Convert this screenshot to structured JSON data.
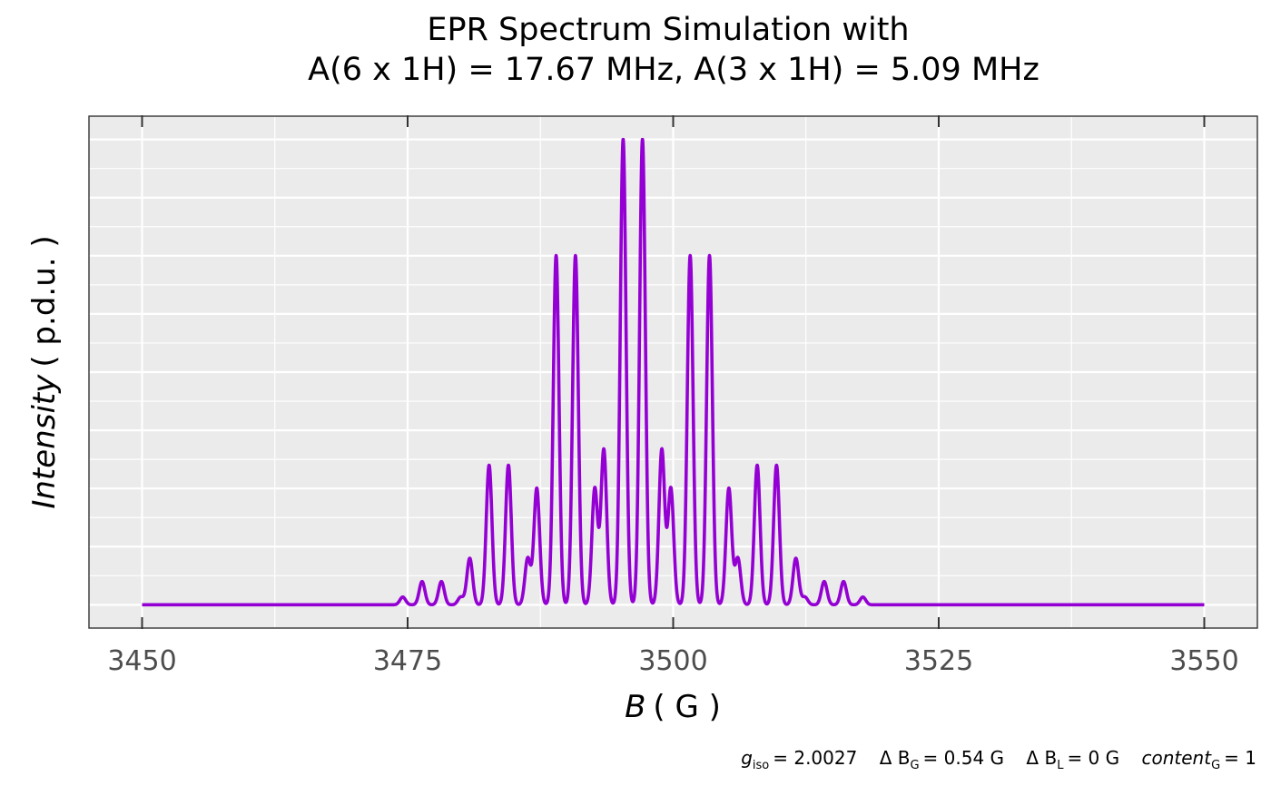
{
  "chart_data": {
    "type": "line",
    "title_line1": "EPR Spectrum Simulation with",
    "title_line2": "A(6 x 1H) = 17.67 MHz, A(3 x 1H) = 5.09 MHz",
    "xlabel": {
      "symbol": "B",
      "unit": "( G )"
    },
    "ylabel": {
      "symbol": "Intensity",
      "unit": "( p.d.u. )"
    },
    "xlim": [
      3445,
      3555
    ],
    "ylim": [
      -0.05,
      1.05
    ],
    "x_ticks": [
      3450,
      3475,
      3500,
      3525,
      3550
    ],
    "x_tick_labels": [
      "3450",
      "3475",
      "3500",
      "3525",
      "3550"
    ],
    "y_ticks_labeled": false,
    "x_range": [
      3450,
      3550
    ],
    "line_color": "#9400d3",
    "panel_color": "#ebebeb",
    "grid_color": "#ffffff",
    "grid": true,
    "line_shape": {
      "center_field": 3496.2,
      "hyperfine_coupling_6H_gauss": 6.31,
      "hyperfine_coupling_3H_gauss": 1.82,
      "linewidth_gauss": 0.54
    },
    "caption": [
      {
        "sym": "g",
        "sub": "iso",
        "val": "= 2.0027"
      },
      {
        "sym": "Δ B",
        "sub": "G",
        "val": "= 0.54  G"
      },
      {
        "sym": "Δ B",
        "sub": "L",
        "val": "= 0  G"
      },
      {
        "sym": "content",
        "sub": "G",
        "val": "= 1"
      }
    ]
  }
}
